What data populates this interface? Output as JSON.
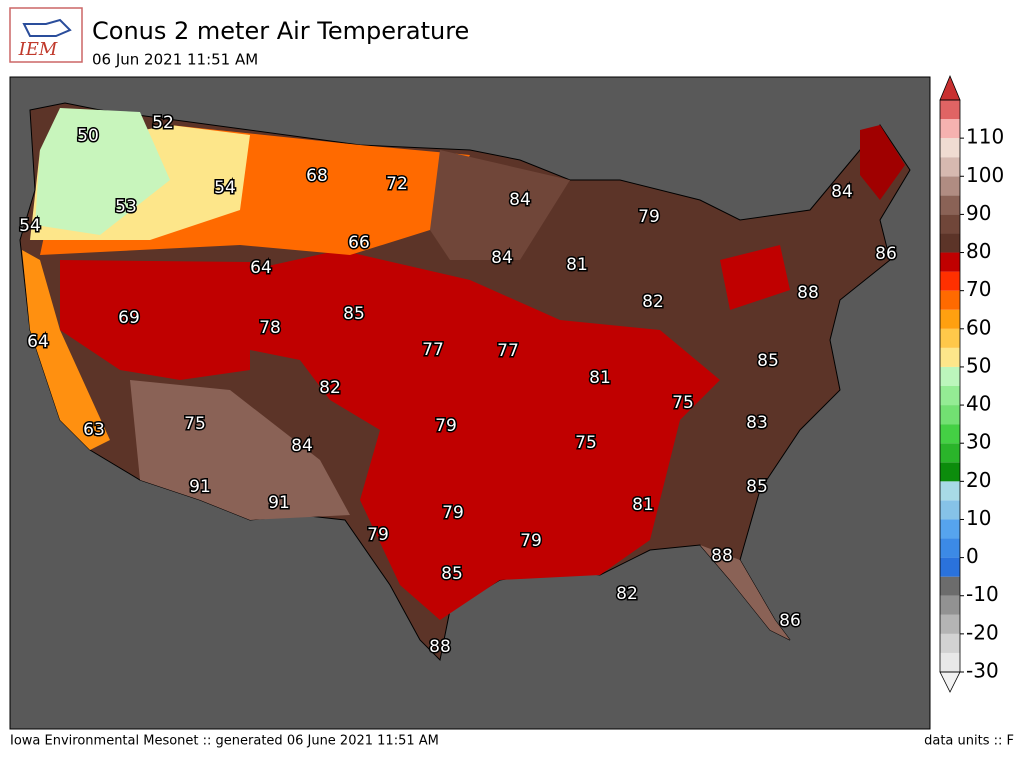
{
  "header": {
    "logo": "IEM",
    "title": "Conus 2 meter Air Temperature",
    "subtitle": "06 Jun 2021 11:51 AM"
  },
  "map": {
    "labels": [
      50,
      52,
      54,
      68,
      72,
      53,
      54,
      84,
      84,
      79,
      66,
      64,
      84,
      81,
      86,
      88,
      69,
      85,
      78,
      82,
      64,
      77,
      77,
      85,
      82,
      81,
      75,
      75,
      79,
      75,
      83,
      63,
      84,
      91,
      91,
      81,
      85,
      79,
      79,
      79,
      88,
      85,
      82,
      86,
      88
    ]
  },
  "colorbar": {
    "lim": [
      -30,
      120
    ],
    "ticks": [
      -30,
      -20,
      -10,
      0,
      10,
      20,
      30,
      40,
      50,
      60,
      70,
      80,
      90,
      100,
      110
    ],
    "colors": [
      "#e8e8e8",
      "#d2d2d2",
      "#b4b4b4",
      "#929292",
      "#6c6c6c",
      "#2a72dc",
      "#3c8ae6",
      "#56a4ee",
      "#86c2e8",
      "#a8dae6",
      "#0c8c0c",
      "#2ab42a",
      "#44d044",
      "#72e072",
      "#94ec94",
      "#bcf6bc",
      "#fde68a",
      "#ffc84a",
      "#ffa010",
      "#ff6a00",
      "#ff3000",
      "#c00000",
      "#5c3428",
      "#704639",
      "#8a6256",
      "#b08c82",
      "#d6b9b0",
      "#f0dcd2",
      "#f6b2b0",
      "#e06464"
    ],
    "over": "#c83030",
    "under": "#f2f2f2"
  },
  "footer": {
    "left": "Iowa Environmental Mesonet :: generated 06 June 2021 11:51 AM",
    "right": "data units :: F"
  }
}
